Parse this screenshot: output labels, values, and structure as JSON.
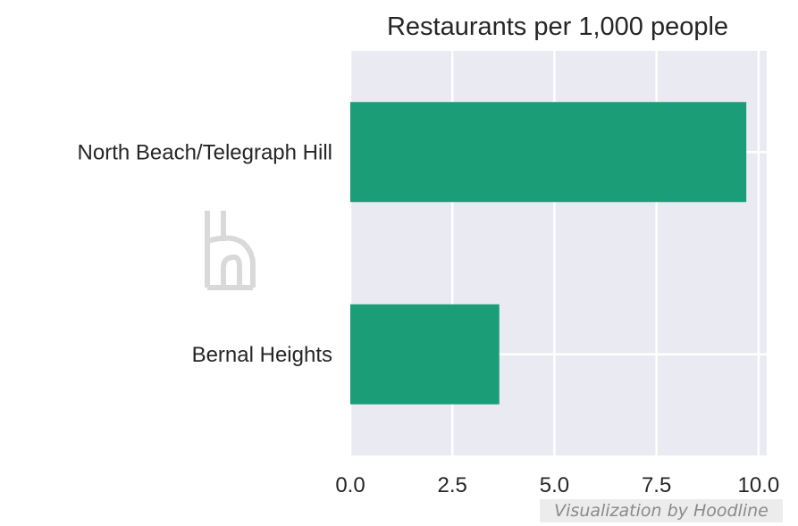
{
  "chart_data": {
    "type": "bar",
    "orientation": "horizontal",
    "title": "Restaurants per 1,000 people",
    "categories": [
      "North Beach/Telegraph Hill",
      "Bernal Heights"
    ],
    "values": [
      9.7,
      3.65
    ],
    "xlim": [
      0,
      10.2
    ],
    "xticks": [
      "0.0",
      "2.5",
      "5.0",
      "7.5",
      "10.0"
    ],
    "xtick_values": [
      0,
      2.5,
      5,
      7.5,
      10
    ],
    "grid": true,
    "bar_color": "#1b9e77",
    "background_color": "#eaeaf2"
  },
  "credit": "Visualization by Hoodline"
}
